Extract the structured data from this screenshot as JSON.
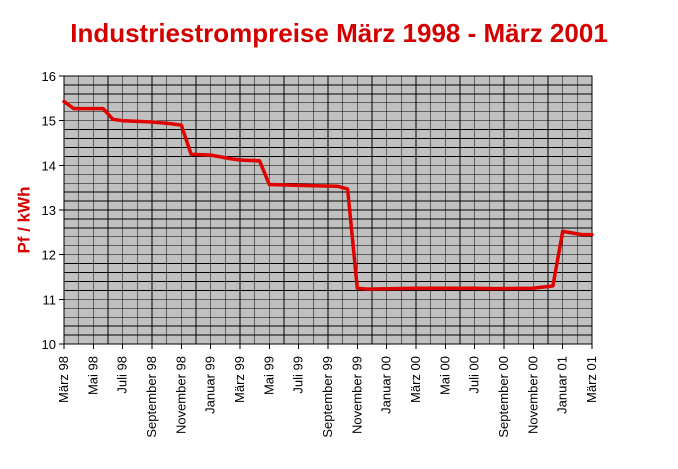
{
  "chart_data": {
    "type": "line",
    "title": "Industriestrompreise März 1998 - März 2001",
    "xlabel": "",
    "ylabel": "Pf / kWh",
    "ylim": [
      10,
      16
    ],
    "yticks": [
      "10",
      "11",
      "12",
      "13",
      "14",
      "15",
      "16"
    ],
    "grid": true,
    "legend": "none",
    "x_tick_labels": [
      "März 98",
      "Mai 98",
      "Juli 98",
      "September 98",
      "November 98",
      "Januar 99",
      "März 99",
      "Mai 99",
      "Juli 99",
      "September 99",
      "November 99",
      "Januar 00",
      "März 00",
      "Mai 00",
      "Juli 00",
      "September 00",
      "November 00",
      "Januar 01",
      "März 01"
    ],
    "colors": {
      "line": "#e00000",
      "plot_bg": "#c0c0c0",
      "grid": "#000000",
      "title": "#d40000"
    },
    "series": [
      {
        "values": [
          [
            0,
            15.43
          ],
          [
            2,
            15.27
          ],
          [
            8,
            15.27
          ],
          [
            10,
            15.03
          ],
          [
            12,
            15.0
          ],
          [
            18,
            14.97
          ],
          [
            22,
            14.93
          ],
          [
            24,
            14.9
          ],
          [
            26,
            14.25
          ],
          [
            30,
            14.23
          ],
          [
            34,
            14.15
          ],
          [
            36,
            14.12
          ],
          [
            40,
            14.1
          ],
          [
            42,
            13.57
          ],
          [
            48,
            13.55
          ],
          [
            56,
            13.53
          ],
          [
            58,
            13.47
          ],
          [
            60,
            11.25
          ],
          [
            62,
            11.23
          ],
          [
            72,
            11.25
          ],
          [
            84,
            11.25
          ],
          [
            88,
            11.24
          ],
          [
            96,
            11.25
          ],
          [
            100,
            11.3
          ],
          [
            102,
            12.52
          ],
          [
            106,
            12.45
          ],
          [
            108,
            12.45
          ]
        ]
      }
    ]
  }
}
